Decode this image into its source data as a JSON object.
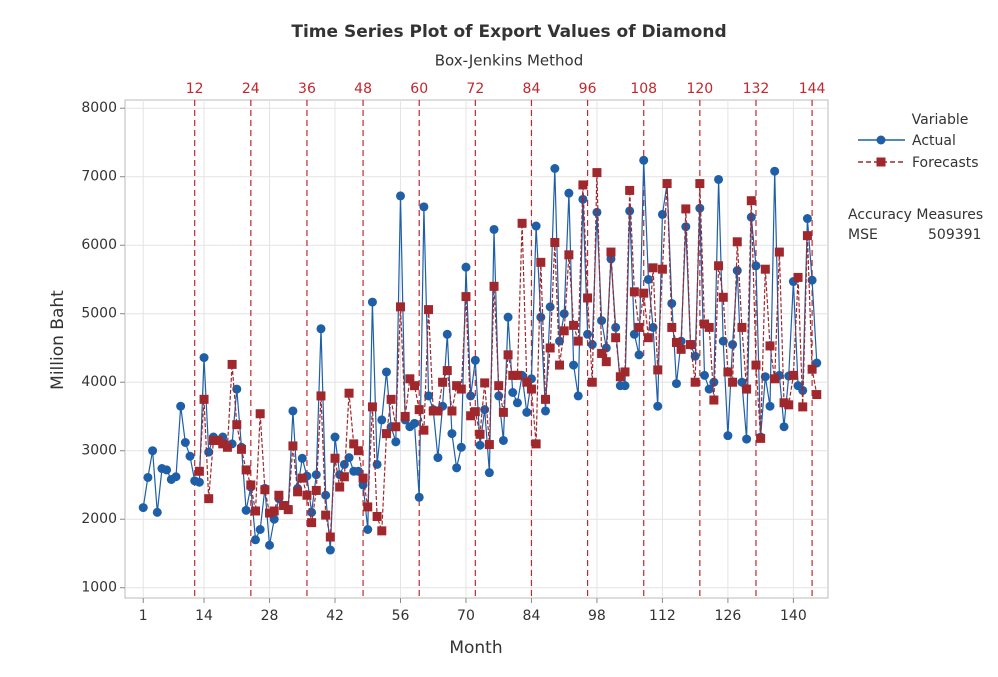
{
  "chart_data": {
    "type": "line",
    "title": "Time Series Plot of Export Values of Diamond",
    "subtitle": "Box-Jenkins Method",
    "x_label": "Month",
    "y_label": "Million Baht",
    "legend_title": "Variable",
    "accuracy_title": "Accuracy Measures",
    "accuracy_name": "MSE",
    "accuracy_value": 509391,
    "grid": true,
    "xlim": [
      -2.9,
      147.4
    ],
    "ylim": [
      850,
      8120
    ],
    "xticks": [
      1,
      14,
      28,
      42,
      56,
      70,
      84,
      98,
      112,
      126,
      140
    ],
    "yticks": [
      1000,
      2000,
      3000,
      4000,
      5000,
      6000,
      7000,
      8000
    ],
    "reference_lines": [
      12,
      24,
      36,
      48,
      60,
      72,
      84,
      96,
      108,
      120,
      132,
      144
    ],
    "reference_color": "#c0282d",
    "x": [
      1,
      2,
      3,
      4,
      5,
      6,
      7,
      8,
      9,
      10,
      11,
      12,
      13,
      14,
      15,
      16,
      17,
      18,
      19,
      20,
      21,
      22,
      23,
      24,
      25,
      26,
      27,
      28,
      29,
      30,
      31,
      32,
      33,
      34,
      35,
      36,
      37,
      38,
      39,
      40,
      41,
      42,
      43,
      44,
      45,
      46,
      47,
      48,
      49,
      50,
      51,
      52,
      53,
      54,
      55,
      56,
      57,
      58,
      59,
      60,
      61,
      62,
      63,
      64,
      65,
      66,
      67,
      68,
      69,
      70,
      71,
      72,
      73,
      74,
      75,
      76,
      77,
      78,
      79,
      80,
      81,
      82,
      83,
      84,
      85,
      86,
      87,
      88,
      89,
      90,
      91,
      92,
      93,
      94,
      95,
      96,
      97,
      98,
      99,
      100,
      101,
      102,
      103,
      104,
      105,
      106,
      107,
      108,
      109,
      110,
      111,
      112,
      113,
      114,
      115,
      116,
      117,
      118,
      119,
      120,
      121,
      122,
      123,
      124,
      125,
      126,
      127,
      128,
      129,
      130,
      131,
      132,
      133,
      134,
      135,
      136,
      137,
      138,
      139,
      140,
      141,
      142,
      143,
      144,
      145
    ],
    "series": [
      {
        "name": "Actual",
        "color": "#1f5fa8",
        "marker": "circle",
        "values": [
          2170,
          2610,
          3000,
          2100,
          2740,
          2720,
          2580,
          2620,
          3650,
          3120,
          2920,
          2560,
          2540,
          4360,
          2980,
          3200,
          3150,
          3200,
          3080,
          3100,
          3900,
          3050,
          2130,
          2470,
          1700,
          1850,
          2450,
          1620,
          2000,
          2300,
          2200,
          2150,
          3580,
          2450,
          2890,
          2630,
          2100,
          2650,
          4780,
          2350,
          1550,
          3200,
          2650,
          2800,
          2900,
          2700,
          2700,
          2500,
          1850,
          5170,
          2800,
          3450,
          4150,
          3350,
          3130,
          6720,
          3450,
          3350,
          3400,
          2320,
          6560,
          3800,
          3600,
          2900,
          3650,
          4700,
          3250,
          2750,
          3050,
          5680,
          3800,
          4320,
          3080,
          3600,
          2680,
          6230,
          3800,
          3150,
          4950,
          3850,
          3700,
          4100,
          3560,
          4050,
          6280,
          4950,
          3580,
          5100,
          7120,
          4600,
          5000,
          6760,
          4250,
          3800,
          6670,
          4700,
          4550,
          6480,
          4900,
          4500,
          5800,
          4800,
          3950,
          3950,
          6500,
          4700,
          4400,
          7240,
          5500,
          4800,
          3650,
          6450,
          6900,
          5150,
          3980,
          4600,
          6270,
          4550,
          4380,
          6540,
          4100,
          3900,
          4000,
          6960,
          4600,
          3220,
          4550,
          5630,
          4000,
          3170,
          6410,
          5700,
          3200,
          4080,
          3650,
          7080,
          4100,
          3350,
          4090,
          5470,
          3950,
          3880,
          6390,
          5490,
          4280
        ]
      },
      {
        "name": "Forecasts",
        "color": "#a0282d",
        "marker": "square",
        "dash": true,
        "values": [
          null,
          null,
          null,
          null,
          null,
          null,
          null,
          null,
          null,
          null,
          null,
          null,
          2700,
          3750,
          2300,
          3150,
          3150,
          3100,
          3050,
          4260,
          3380,
          3020,
          2720,
          2500,
          2120,
          3540,
          2430,
          2090,
          2120,
          2350,
          2200,
          2140,
          3070,
          2400,
          2600,
          2350,
          1950,
          2420,
          3800,
          2060,
          1740,
          2890,
          2470,
          2620,
          3840,
          3100,
          3000,
          2600,
          2180,
          3640,
          2040,
          1830,
          3250,
          3750,
          3350,
          5100,
          3500,
          4050,
          3950,
          3600,
          3300,
          5060,
          3580,
          3580,
          4000,
          4170,
          3580,
          3950,
          3900,
          5250,
          3510,
          3570,
          3240,
          3990,
          3090,
          5400,
          3950,
          3560,
          4400,
          4100,
          4100,
          6320,
          4000,
          3900,
          3100,
          5750,
          3750,
          4500,
          6040,
          4250,
          4750,
          5860,
          4830,
          4600,
          6880,
          5230,
          4000,
          7060,
          4420,
          4300,
          5900,
          4650,
          4080,
          4150,
          6800,
          5320,
          4800,
          5300,
          4650,
          5670,
          4180,
          5650,
          6900,
          4800,
          4580,
          4480,
          6530,
          4550,
          4000,
          6900,
          4850,
          4800,
          3740,
          5700,
          5240,
          4150,
          4000,
          6050,
          4800,
          3900,
          6650,
          4250,
          3180,
          5650,
          4530,
          4050,
          5900,
          3700,
          3670,
          4100,
          5530,
          3640,
          6140,
          4190,
          3820
        ]
      }
    ]
  }
}
